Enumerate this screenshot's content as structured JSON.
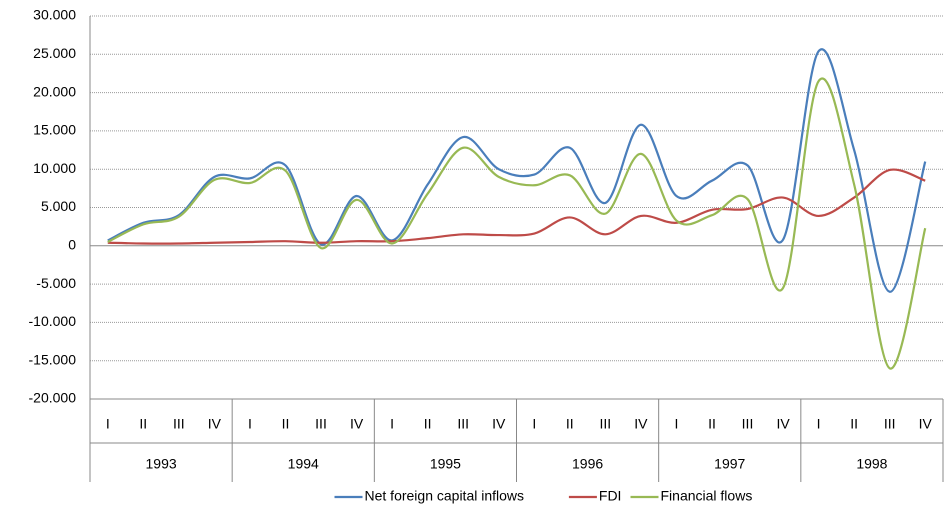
{
  "chart_data": {
    "type": "line",
    "smooth": true,
    "grid": true,
    "legend": "bottom",
    "categories": [
      "I",
      "II",
      "III",
      "IV",
      "I",
      "II",
      "III",
      "IV",
      "I",
      "II",
      "III",
      "IV",
      "I",
      "II",
      "III",
      "IV",
      "I",
      "II",
      "III",
      "IV",
      "I",
      "II",
      "III",
      "IV"
    ],
    "years": [
      "1993",
      "1994",
      "1995",
      "1996",
      "1997",
      "1998"
    ],
    "ylim": [
      -20000,
      30000
    ],
    "yticks": [
      {
        "value": -20000,
        "label": "-20.000"
      },
      {
        "value": -15000,
        "label": "-15.000"
      },
      {
        "value": -10000,
        "label": "-10.000"
      },
      {
        "value": -5000,
        "label": "-5.000"
      },
      0,
      {
        "value": 5000,
        "label": "5.000"
      },
      {
        "value": 10000,
        "label": "10.000"
      },
      {
        "value": 15000,
        "label": "15.000"
      },
      {
        "value": 20000,
        "label": "20.000"
      },
      {
        "value": 25000,
        "label": "25.000"
      },
      {
        "value": 30000,
        "label": "30.000"
      }
    ],
    "series": [
      {
        "name": "Net foreign capital inflows",
        "color": "#4a7ebb",
        "values": [
          700,
          3000,
          4000,
          9000,
          8800,
          10500,
          200,
          6500,
          700,
          8000,
          14200,
          10000,
          9300,
          12800,
          5600,
          15800,
          6500,
          8500,
          10500,
          800,
          25400,
          12500,
          -6000,
          11000
        ]
      },
      {
        "name": "FDI",
        "color": "#be4b48",
        "values": [
          400,
          300,
          300,
          400,
          500,
          600,
          400,
          600,
          600,
          1000,
          1500,
          1400,
          1600,
          3700,
          1500,
          3900,
          3000,
          4700,
          4800,
          6300,
          3900,
          6300,
          9900,
          8500
        ]
      },
      {
        "name": "Financial flows",
        "color": "#98b954",
        "values": [
          500,
          2800,
          3800,
          8600,
          8200,
          9800,
          -300,
          6000,
          300,
          6800,
          12800,
          9000,
          7900,
          9200,
          4200,
          12000,
          3300,
          4000,
          6100,
          -5500,
          21500,
          8000,
          -16000,
          2300
        ]
      }
    ]
  }
}
